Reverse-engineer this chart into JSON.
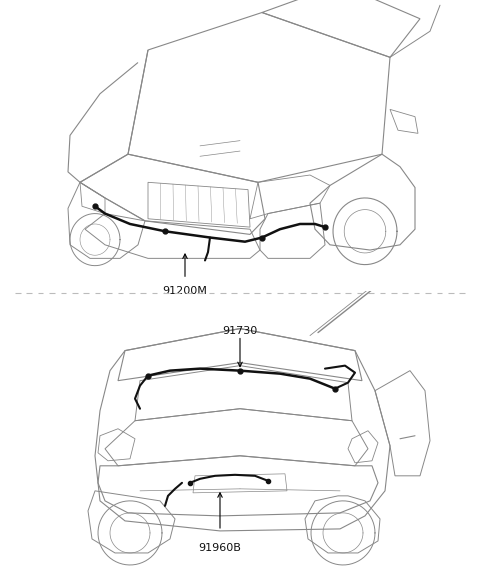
{
  "bg_color": "#ffffff",
  "line_color": "#cccccc",
  "car_line_color": "#888888",
  "wire_color": "#111111",
  "label_color": "#111111",
  "divider_color": "#bbbbbb",
  "fig_width": 4.8,
  "fig_height": 5.81,
  "top_label": "91200M",
  "bottom_label1": "91730",
  "bottom_label2": "91960B",
  "label_fontsize": 8.0
}
